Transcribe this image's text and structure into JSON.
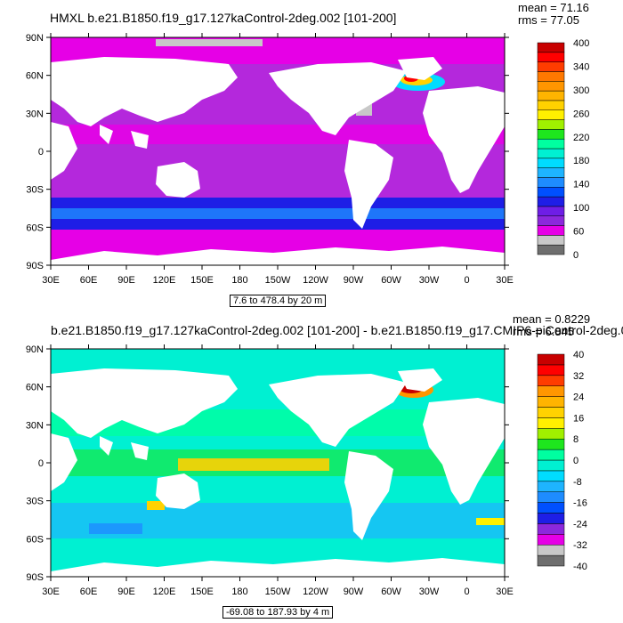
{
  "colors": {
    "land": "#ffffff",
    "seaice": "#c8c8c8",
    "top_palette": [
      "#6e6e6e",
      "#c8c8c8",
      "#e600e6",
      "#8c28dc",
      "#6e1ee6",
      "#1e1ee6",
      "#0050ff",
      "#1e8cff",
      "#1eb4ff",
      "#00dcff",
      "#00f0d2",
      "#00ffa0",
      "#1ee61e",
      "#a0f000",
      "#fff000",
      "#ffd200",
      "#ffb400",
      "#ff9600",
      "#ff7800",
      "#ff3c00",
      "#ff0000",
      "#c80000"
    ],
    "bottom_palette": [
      "#6e6e6e",
      "#c8c8c8",
      "#e600e6",
      "#8c28dc",
      "#1e1ee6",
      "#0050ff",
      "#1e8cff",
      "#1eb4ff",
      "#00dcff",
      "#00f0d2",
      "#00ffa0",
      "#1ee61e",
      "#a0f000",
      "#fff000",
      "#ffd200",
      "#ffb400",
      "#ff9600",
      "#ff3c00",
      "#ff0000",
      "#c80000"
    ]
  },
  "panels": [
    {
      "title": "HMXL b.e21.B1850.f19_g17.127kaControl-2deg.002 [101-200]",
      "mean_text": "mean = 71.16",
      "rms_text": "rms = 77.05",
      "range_text": "7.6 to 478.4 by 20 m",
      "lat_labels": [
        "90N",
        "60N",
        "30N",
        "0",
        "30S",
        "60S",
        "90S"
      ],
      "lon_labels": [
        "30E",
        "60E",
        "90E",
        "120E",
        "150E",
        "180",
        "150W",
        "120W",
        "90W",
        "60W",
        "30W",
        "0",
        "30E"
      ],
      "colorbar_labels": [
        "400",
        "340",
        "300",
        "260",
        "220",
        "180",
        "140",
        "100",
        "60",
        "0"
      ]
    },
    {
      "title": "b.e21.B1850.f19_g17.127kaControl-2deg.002 [101-200] - b.e21.B1850.f19_g17.CMIP6-piControl-2deg.0",
      "mean_text": "mean = 0.8229",
      "rms_text": "rms = 6.845",
      "range_text": "-69.08 to 187.93 by 4 m",
      "lat_labels": [
        "90N",
        "60N",
        "30N",
        "0",
        "30S",
        "60S",
        "90S"
      ],
      "lon_labels": [
        "30E",
        "60E",
        "90E",
        "120E",
        "150E",
        "180",
        "150W",
        "120W",
        "90W",
        "60W",
        "30W",
        "0",
        "30E"
      ],
      "colorbar_labels": [
        "40",
        "32",
        "24",
        "16",
        "8",
        "0",
        "-8",
        "-16",
        "-24",
        "-32",
        "-40"
      ]
    }
  ]
}
